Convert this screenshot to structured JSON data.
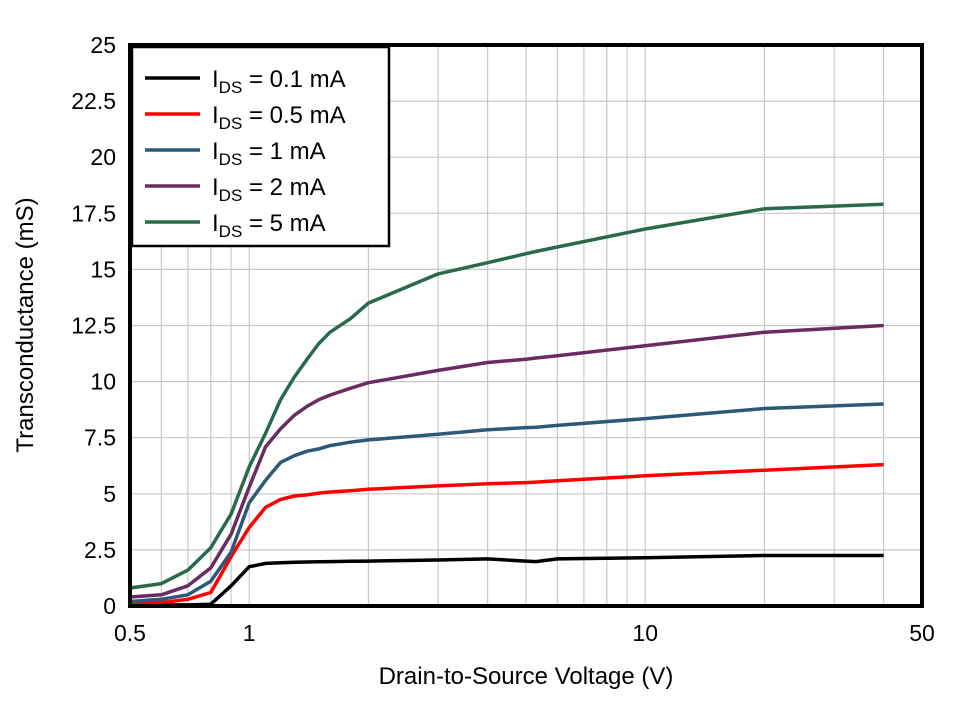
{
  "chart_data": {
    "type": "line",
    "title": "",
    "xlabel": "Drain-to-Source Voltage (V)",
    "ylabel": "Transconductance (mS)",
    "xscale": "log",
    "xlim": [
      0.5,
      50
    ],
    "ylim": [
      0,
      25
    ],
    "grid": true,
    "legend_position": "top-left",
    "x_tick_labels": [
      "0.5",
      "1",
      "10",
      "50"
    ],
    "x_tick_values": [
      0.5,
      1,
      10,
      50
    ],
    "y_tick_labels": [
      "0",
      "2.5",
      "5",
      "7.5",
      "10",
      "12.5",
      "15",
      "17.5",
      "20",
      "22.5",
      "25"
    ],
    "y_tick_values": [
      0,
      2.5,
      5,
      7.5,
      10,
      12.5,
      15,
      17.5,
      20,
      22.5,
      25
    ],
    "x": [
      0.5,
      0.6,
      0.7,
      0.8,
      0.9,
      1.0,
      1.1,
      1.2,
      1.3,
      1.4,
      1.5,
      1.6,
      1.8,
      2,
      3,
      4,
      5,
      5.3,
      6,
      10,
      20,
      40
    ],
    "series": [
      {
        "name": "I_DS = 0.1 mA",
        "label_main": "I",
        "label_sub": "DS",
        "label_rest": " = 0.1 mA",
        "color": "#000000",
        "values": [
          0.05,
          0.05,
          0.05,
          0.08,
          0.9,
          1.75,
          1.9,
          1.93,
          1.95,
          1.96,
          1.97,
          1.98,
          1.99,
          2.0,
          2.05,
          2.1,
          2.0,
          1.98,
          2.1,
          2.15,
          2.25,
          2.25
        ]
      },
      {
        "name": "I_DS = 0.5 mA",
        "label_main": "I",
        "label_sub": "DS",
        "label_rest": " = 0.5 mA",
        "color": "#ff0000",
        "values": [
          0.1,
          0.15,
          0.3,
          0.6,
          2.2,
          3.5,
          4.4,
          4.75,
          4.9,
          4.95,
          5.03,
          5.08,
          5.14,
          5.2,
          5.35,
          5.45,
          5.5,
          5.52,
          5.58,
          5.8,
          6.05,
          6.3
        ]
      },
      {
        "name": "I_DS = 1 mA",
        "label_main": "I",
        "label_sub": "DS",
        "label_rest": " = 1 mA",
        "color": "#2a5a78",
        "values": [
          0.2,
          0.3,
          0.5,
          1.1,
          2.4,
          4.6,
          5.6,
          6.4,
          6.7,
          6.9,
          7.0,
          7.15,
          7.3,
          7.4,
          7.65,
          7.85,
          7.95,
          7.97,
          8.05,
          8.35,
          8.8,
          9.0
        ]
      },
      {
        "name": "I_DS = 2 mA",
        "label_main": "I",
        "label_sub": "DS",
        "label_rest": " = 2 mA",
        "color": "#6a2a62",
        "values": [
          0.4,
          0.5,
          0.9,
          1.7,
          3.2,
          5.3,
          7.1,
          7.9,
          8.5,
          8.9,
          9.2,
          9.4,
          9.7,
          9.95,
          10.5,
          10.85,
          11.0,
          11.05,
          11.15,
          11.6,
          12.2,
          12.5
        ]
      },
      {
        "name": "I_DS = 5 mA",
        "label_main": "I",
        "label_sub": "DS",
        "label_rest": " = 5 mA",
        "color": "#2a6a4c",
        "values": [
          0.8,
          1.0,
          1.6,
          2.6,
          4.1,
          6.2,
          7.7,
          9.2,
          10.2,
          11.0,
          11.7,
          12.2,
          12.8,
          13.5,
          14.8,
          15.3,
          15.7,
          15.8,
          16.0,
          16.8,
          17.7,
          17.9
        ]
      }
    ]
  }
}
